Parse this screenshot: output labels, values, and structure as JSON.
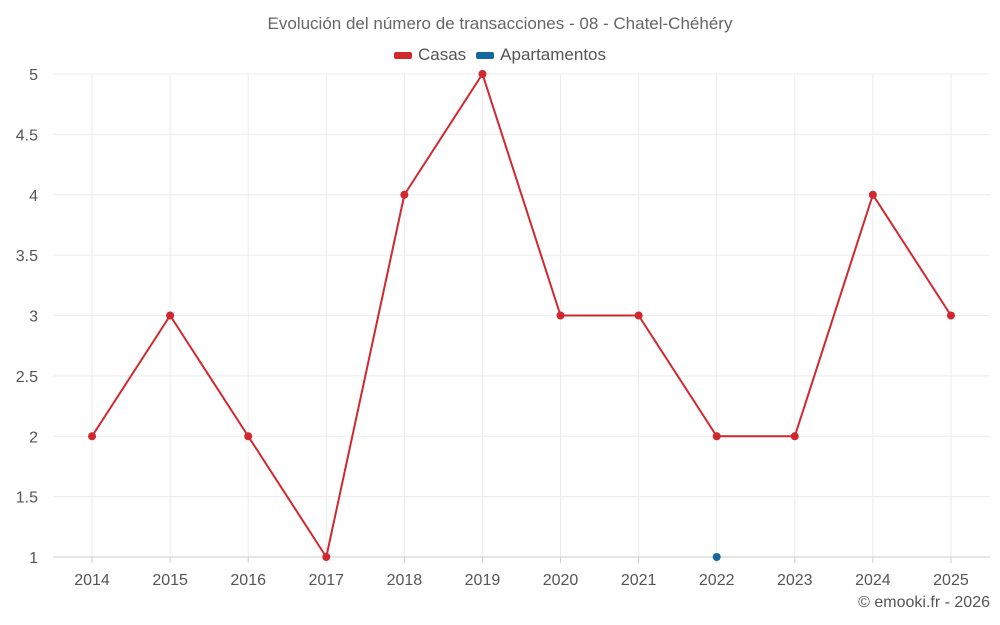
{
  "chart_data": {
    "type": "line",
    "title": "Evolución del número de transacciones - 08 - Chatel-Chéhéry",
    "categories": [
      "2014",
      "2015",
      "2016",
      "2017",
      "2018",
      "2019",
      "2020",
      "2021",
      "2022",
      "2023",
      "2024",
      "2025"
    ],
    "series": [
      {
        "name": "Casas",
        "color": "#d0282e",
        "values": [
          2,
          3,
          2,
          1,
          4,
          5,
          3,
          3,
          2,
          2,
          4,
          3
        ]
      },
      {
        "name": "Apartamentos",
        "color": "#15689e",
        "values": [
          null,
          null,
          null,
          null,
          null,
          null,
          null,
          null,
          1,
          null,
          null,
          null
        ]
      }
    ],
    "yticks": [
      "1",
      "1.5",
      "2",
      "2.5",
      "3",
      "3.5",
      "4",
      "4.5",
      "5"
    ],
    "ylim": [
      1,
      5
    ],
    "grid": true,
    "legend_position": "top-center"
  },
  "credit": "© emooki.fr - 2026"
}
